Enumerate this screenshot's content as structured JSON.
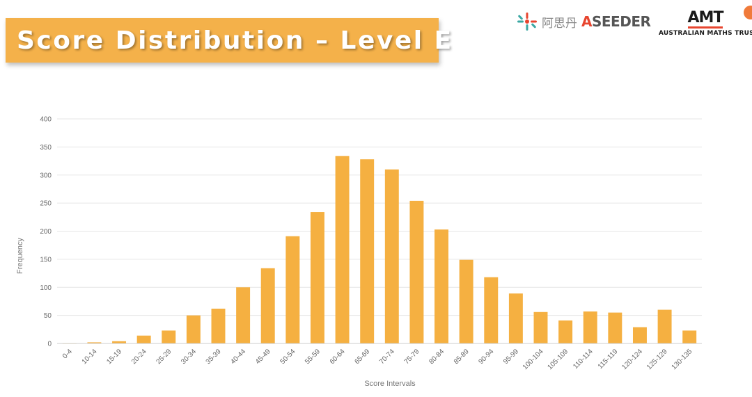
{
  "header": {
    "title": "Score Distribution – Level E"
  },
  "logos": {
    "aseeder_cn": "阿思丹",
    "aseeder_prefix": "A",
    "aseeder_rest": "SEEDER",
    "amt_mark": "AMT",
    "amt_name": "AUSTRALIAN MATHS TRUST"
  },
  "colors": {
    "bar": "#f5b041",
    "banner": "#f4b14a",
    "accent": "#e7452f"
  },
  "chart_data": {
    "type": "bar",
    "title": "",
    "xlabel": "Score Intervals",
    "ylabel": "Frequency",
    "ylim": [
      0,
      400
    ],
    "yticks": [
      0,
      50,
      100,
      150,
      200,
      250,
      300,
      350,
      400
    ],
    "grid": true,
    "categories": [
      "0-4",
      "10-14",
      "15-19",
      "20-24",
      "25-29",
      "30-34",
      "35-39",
      "40-44",
      "45-49",
      "50-54",
      "55-59",
      "60-64",
      "65-69",
      "70-74",
      "75-79",
      "80-84",
      "85-89",
      "90-94",
      "95-99",
      "100-104",
      "105-109",
      "110-114",
      "115-119",
      "120-124",
      "125-129",
      "130-135"
    ],
    "values": [
      0,
      2,
      4,
      14,
      23,
      50,
      62,
      100,
      134,
      191,
      234,
      334,
      328,
      310,
      254,
      203,
      149,
      118,
      89,
      56,
      41,
      57,
      55,
      29,
      60,
      23
    ]
  }
}
